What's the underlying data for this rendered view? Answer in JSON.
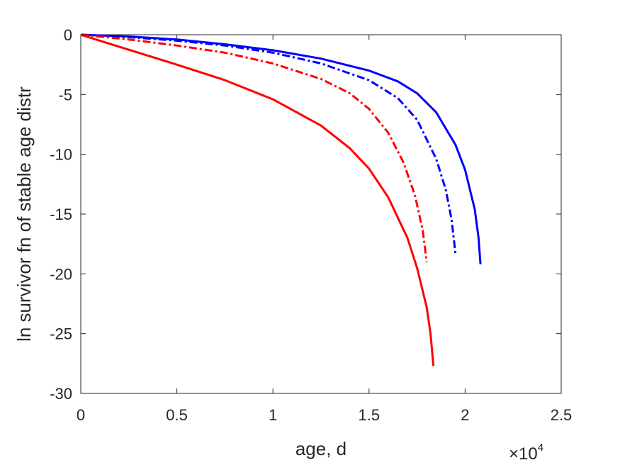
{
  "chart_data": {
    "type": "line",
    "xlabel": "age, d",
    "ylabel": "ln survivor fn of stable age distr",
    "x_exponent_label": {
      "base": "×10",
      "exp": "4"
    },
    "xlim": [
      0,
      25000
    ],
    "ylim": [
      -30,
      0
    ],
    "xticks": [
      0,
      5000,
      10000,
      15000,
      20000,
      25000
    ],
    "xtick_labels": [
      "0",
      "0.5",
      "1",
      "1.5",
      "2",
      "2.5"
    ],
    "yticks": [
      0,
      -5,
      -10,
      -15,
      -20,
      -25,
      -30
    ],
    "ytick_labels": [
      "0",
      "-5",
      "-10",
      "-15",
      "-20",
      "-25",
      "-30"
    ],
    "grid": false,
    "legend": "none",
    "series": [
      {
        "color": "#0000ff",
        "style": "solid",
        "x": [
          0,
          2500,
          5000,
          7500,
          10000,
          12500,
          15000,
          16500,
          17500,
          18500,
          19500,
          20000,
          20500,
          20700,
          20800
        ],
        "y": [
          0,
          -0.15,
          -0.4,
          -0.8,
          -1.3,
          -2.0,
          -3.0,
          -3.9,
          -4.9,
          -6.5,
          -9.2,
          -11.3,
          -14.6,
          -17.0,
          -19.2
        ]
      },
      {
        "color": "#0000ff",
        "style": "dashdot",
        "x": [
          0,
          2500,
          5000,
          7500,
          10000,
          12500,
          15000,
          16500,
          17500,
          18500,
          19000,
          19300,
          19500
        ],
        "y": [
          0,
          -0.2,
          -0.5,
          -0.9,
          -1.5,
          -2.4,
          -3.8,
          -5.3,
          -7.1,
          -10.4,
          -13.0,
          -15.5,
          -18.3
        ]
      },
      {
        "color": "#ff0000",
        "style": "dashdot",
        "x": [
          0,
          2500,
          5000,
          7500,
          10000,
          12500,
          14000,
          15000,
          16000,
          16800,
          17400,
          17800,
          18000
        ],
        "y": [
          0,
          -0.4,
          -0.9,
          -1.5,
          -2.4,
          -3.7,
          -4.9,
          -6.2,
          -8.2,
          -10.7,
          -13.5,
          -16.4,
          -19.0
        ]
      },
      {
        "color": "#ff0000",
        "style": "solid",
        "x": [
          0,
          2000,
          5000,
          7500,
          10000,
          12500,
          14000,
          15000,
          16000,
          17000,
          17500,
          18000,
          18200,
          18350
        ],
        "y": [
          0,
          -1.0,
          -2.5,
          -3.8,
          -5.4,
          -7.6,
          -9.5,
          -11.2,
          -13.6,
          -17.0,
          -19.5,
          -22.8,
          -25.0,
          -27.7
        ]
      }
    ]
  }
}
